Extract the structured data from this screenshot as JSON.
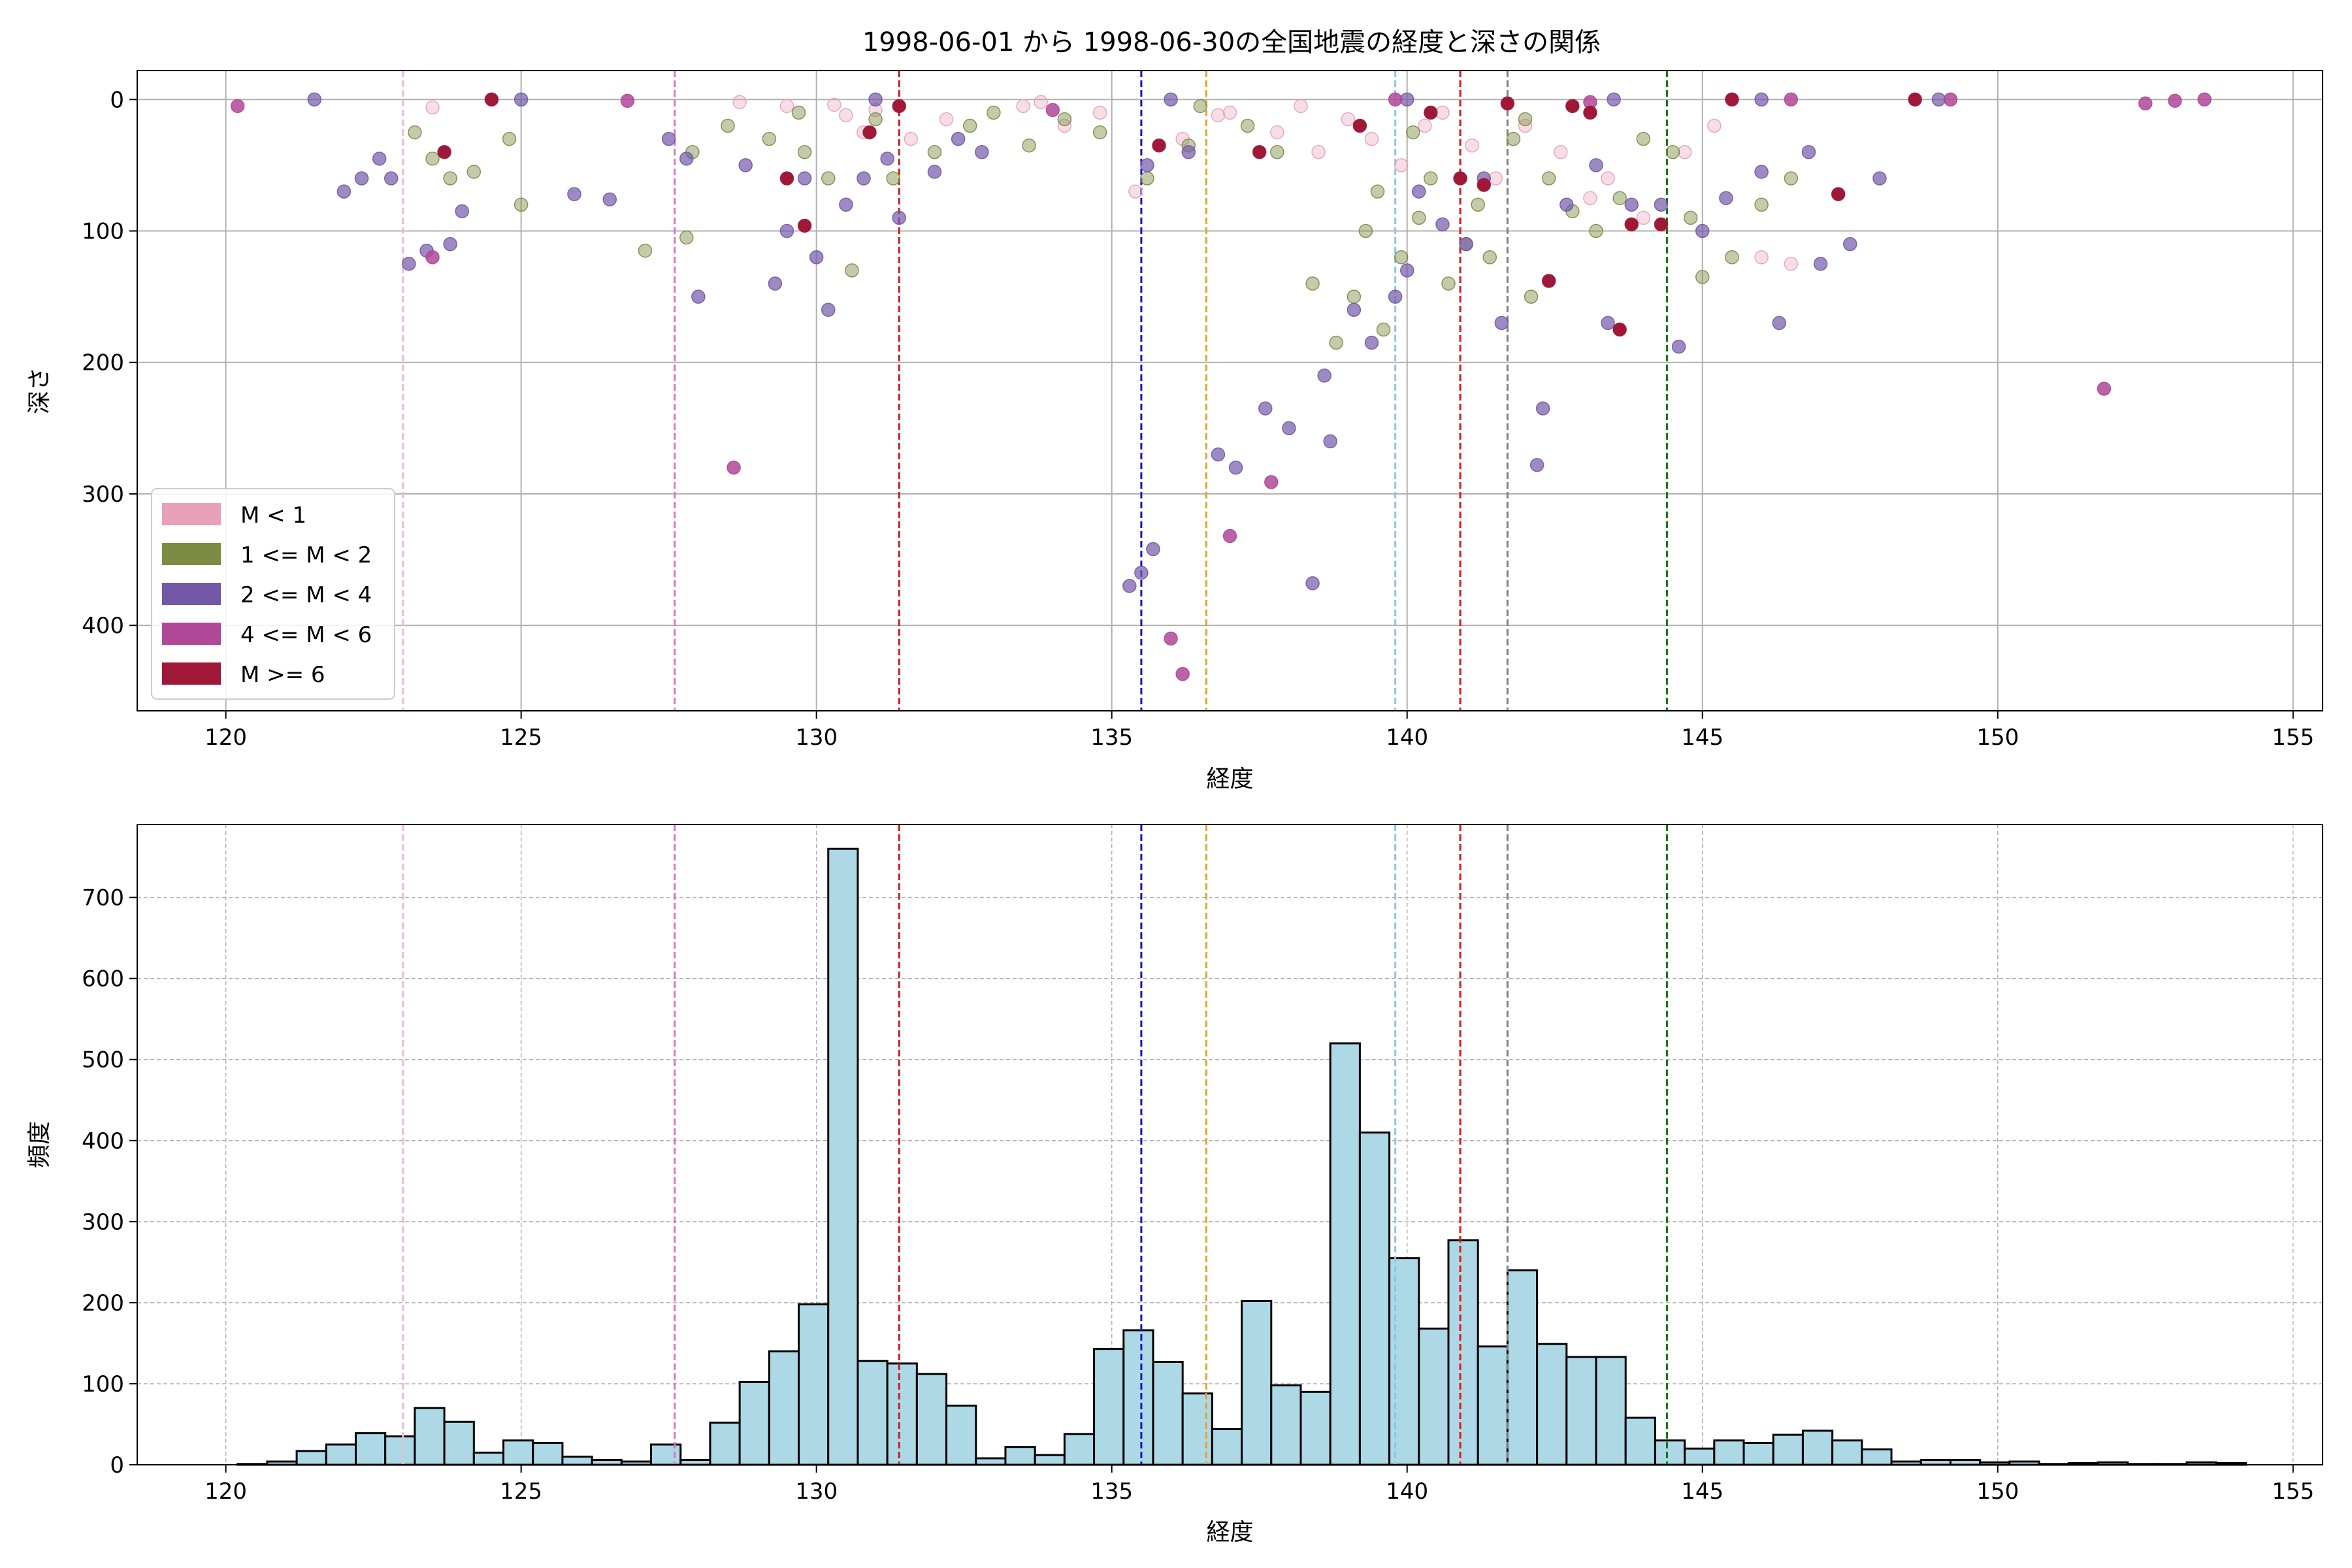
{
  "figure": {
    "title": "1998-06-01 から 1998-06-30の全国地震の経度と深さの関係"
  },
  "chart_data": [
    {
      "type": "scatter",
      "xlabel": "経度",
      "ylabel": "深さ",
      "xlim": [
        118.5,
        155.5
      ],
      "ylim": [
        465,
        -22
      ],
      "y_inverted": true,
      "xticks": [
        "120",
        "125",
        "130",
        "135",
        "140",
        "145",
        "150",
        "155"
      ],
      "yticks": [
        "0",
        "100",
        "200",
        "300",
        "400"
      ],
      "grid": true,
      "legend_position": "lower-left",
      "legend": [
        {
          "label": "M < 1",
          "color": "#e8a0b8"
        },
        {
          "label": "1 <= M < 2",
          "color": "#7c8c42"
        },
        {
          "label": "2 <= M < 4",
          "color": "#7458a8"
        },
        {
          "label": "4 <= M < 6",
          "color": "#b04898"
        },
        {
          "label": "M >= 6",
          "color": "#a01838"
        }
      ],
      "vlines": [
        {
          "x": 123.0,
          "color": "#f4b8cc"
        },
        {
          "x": 127.6,
          "color": "#e070d0"
        },
        {
          "x": 131.4,
          "color": "#c81e1e"
        },
        {
          "x": 135.5,
          "color": "#1414c8"
        },
        {
          "x": 136.6,
          "color": "#f0a020"
        },
        {
          "x": 139.8,
          "color": "#87c8e6"
        },
        {
          "x": 140.9,
          "color": "#e81414"
        },
        {
          "x": 141.7,
          "color": "#808080"
        },
        {
          "x": 144.4,
          "color": "#108010"
        }
      ],
      "series": [
        {
          "name": "M < 1",
          "points": [
            [
              128.7,
              2
            ],
            [
              129.5,
              5
            ],
            [
              130.3,
              4
            ],
            [
              130.5,
              12
            ],
            [
              130.8,
              25
            ],
            [
              131.0,
              8
            ],
            [
              131.6,
              30
            ],
            [
              132.2,
              15
            ],
            [
              133.5,
              5
            ],
            [
              134.2,
              20
            ],
            [
              134.8,
              10
            ],
            [
              135.4,
              70
            ],
            [
              136.2,
              30
            ],
            [
              137.0,
              10
            ],
            [
              137.8,
              25
            ],
            [
              138.2,
              5
            ],
            [
              138.5,
              40
            ],
            [
              139.0,
              15
            ],
            [
              139.4,
              30
            ],
            [
              139.9,
              50
            ],
            [
              140.3,
              20
            ],
            [
              140.6,
              10
            ],
            [
              141.1,
              35
            ],
            [
              141.5,
              60
            ],
            [
              142.0,
              20
            ],
            [
              142.6,
              40
            ],
            [
              143.1,
              75
            ],
            [
              143.4,
              60
            ],
            [
              144.0,
              90
            ],
            [
              144.7,
              40
            ],
            [
              145.2,
              20
            ],
            [
              146.0,
              120
            ],
            [
              146.5,
              125
            ],
            [
              136.8,
              12
            ],
            [
              133.8,
              2
            ],
            [
              123.5,
              6
            ]
          ]
        },
        {
          "name": "1 <= M < 2",
          "points": [
            [
              123.2,
              25
            ],
            [
              123.5,
              45
            ],
            [
              123.8,
              60
            ],
            [
              124.2,
              55
            ],
            [
              124.8,
              30
            ],
            [
              125.0,
              80
            ],
            [
              127.9,
              40
            ],
            [
              128.5,
              20
            ],
            [
              129.2,
              30
            ],
            [
              129.8,
              40
            ],
            [
              130.2,
              60
            ],
            [
              130.6,
              130
            ],
            [
              131.3,
              60
            ],
            [
              132.0,
              40
            ],
            [
              132.6,
              20
            ],
            [
              133.0,
              10
            ],
            [
              133.6,
              35
            ],
            [
              134.2,
              15
            ],
            [
              134.8,
              25
            ],
            [
              135.6,
              60
            ],
            [
              136.3,
              35
            ],
            [
              137.3,
              20
            ],
            [
              137.8,
              40
            ],
            [
              138.4,
              140
            ],
            [
              138.8,
              185
            ],
            [
              139.1,
              150
            ],
            [
              139.3,
              100
            ],
            [
              139.5,
              70
            ],
            [
              139.6,
              175
            ],
            [
              139.9,
              120
            ],
            [
              140.2,
              90
            ],
            [
              140.4,
              60
            ],
            [
              140.7,
              140
            ],
            [
              141.0,
              110
            ],
            [
              141.2,
              80
            ],
            [
              141.4,
              120
            ],
            [
              141.8,
              30
            ],
            [
              142.1,
              150
            ],
            [
              142.4,
              60
            ],
            [
              142.8,
              85
            ],
            [
              143.2,
              100
            ],
            [
              143.6,
              75
            ],
            [
              144.0,
              30
            ],
            [
              144.5,
              40
            ],
            [
              144.8,
              90
            ],
            [
              145.0,
              135
            ],
            [
              145.5,
              120
            ],
            [
              146.0,
              80
            ],
            [
              146.5,
              60
            ],
            [
              127.1,
              115
            ],
            [
              127.8,
              105
            ],
            [
              129.7,
              10
            ],
            [
              131.0,
              15
            ],
            [
              136.5,
              5
            ],
            [
              140.1,
              25
            ],
            [
              142.0,
              15
            ]
          ]
        },
        {
          "name": "2 <= M < 4",
          "points": [
            [
              122.0,
              70
            ],
            [
              122.3,
              60
            ],
            [
              122.6,
              45
            ],
            [
              122.8,
              60
            ],
            [
              123.1,
              125
            ],
            [
              123.4,
              115
            ],
            [
              123.8,
              110
            ],
            [
              124.0,
              85
            ],
            [
              125.9,
              72
            ],
            [
              126.5,
              76
            ],
            [
              127.5,
              30
            ],
            [
              127.8,
              45
            ],
            [
              128.0,
              150
            ],
            [
              128.8,
              50
            ],
            [
              129.3,
              140
            ],
            [
              129.5,
              100
            ],
            [
              129.8,
              60
            ],
            [
              130.0,
              120
            ],
            [
              130.2,
              160
            ],
            [
              130.5,
              80
            ],
            [
              130.8,
              60
            ],
            [
              131.2,
              45
            ],
            [
              131.4,
              90
            ],
            [
              132.0,
              55
            ],
            [
              132.4,
              30
            ],
            [
              132.8,
              40
            ],
            [
              135.3,
              370
            ],
            [
              135.5,
              360
            ],
            [
              135.6,
              50
            ],
            [
              135.7,
              342
            ],
            [
              136.3,
              40
            ],
            [
              136.8,
              270
            ],
            [
              137.1,
              280
            ],
            [
              137.6,
              235
            ],
            [
              138.0,
              250
            ],
            [
              138.6,
              210
            ],
            [
              138.7,
              260
            ],
            [
              139.1,
              160
            ],
            [
              139.4,
              185
            ],
            [
              139.8,
              150
            ],
            [
              140.0,
              130
            ],
            [
              140.2,
              70
            ],
            [
              140.6,
              95
            ],
            [
              141.0,
              110
            ],
            [
              141.3,
              60
            ],
            [
              141.6,
              170
            ],
            [
              142.2,
              278
            ],
            [
              142.3,
              235
            ],
            [
              142.7,
              80
            ],
            [
              143.2,
              50
            ],
            [
              143.4,
              170
            ],
            [
              143.8,
              80
            ],
            [
              144.3,
              80
            ],
            [
              144.6,
              188
            ],
            [
              145.0,
              100
            ],
            [
              145.4,
              75
            ],
            [
              146.0,
              55
            ],
            [
              146.3,
              170
            ],
            [
              146.8,
              40
            ],
            [
              147.0,
              125
            ],
            [
              147.5,
              110
            ],
            [
              148.0,
              60
            ],
            [
              138.4,
              368
            ],
            [
              121.5,
              0
            ],
            [
              125.0,
              0
            ],
            [
              131.0,
              0
            ],
            [
              136.0,
              0
            ],
            [
              140.0,
              0
            ],
            [
              143.5,
              0
            ],
            [
              146.0,
              0
            ],
            [
              149.0,
              0
            ]
          ]
        },
        {
          "name": "4 <= M < 6",
          "points": [
            [
              120.2,
              5
            ],
            [
              123.5,
              120
            ],
            [
              128.6,
              280
            ],
            [
              136.0,
              410
            ],
            [
              136.2,
              437
            ],
            [
              137.0,
              332
            ],
            [
              137.7,
              291
            ],
            [
              151.8,
              220
            ],
            [
              152.5,
              3
            ],
            [
              153.0,
              1
            ],
            [
              153.5,
              0
            ],
            [
              149.2,
              0
            ],
            [
              146.5,
              0
            ],
            [
              143.1,
              2
            ],
            [
              139.8,
              0
            ],
            [
              134.0,
              8
            ],
            [
              126.8,
              1
            ]
          ]
        },
        {
          "name": "M >= 6",
          "points": [
            [
              123.7,
              40
            ],
            [
              129.8,
              96
            ],
            [
              129.5,
              60
            ],
            [
              131.4,
              5
            ],
            [
              135.8,
              35
            ],
            [
              137.5,
              40
            ],
            [
              140.9,
              60
            ],
            [
              141.3,
              65
            ],
            [
              142.4,
              138
            ],
            [
              143.6,
              175
            ],
            [
              143.8,
              95
            ],
            [
              144.3,
              95
            ],
            [
              147.3,
              72
            ],
            [
              142.8,
              5
            ],
            [
              141.7,
              3
            ],
            [
              143.1,
              10
            ],
            [
              124.5,
              0
            ],
            [
              130.9,
              25
            ],
            [
              139.2,
              20
            ],
            [
              140.4,
              10
            ],
            [
              145.5,
              0
            ],
            [
              148.6,
              0
            ]
          ]
        }
      ]
    },
    {
      "type": "bar",
      "xlabel": "経度",
      "ylabel": "頻度",
      "xlim": [
        118.5,
        155.5
      ],
      "ylim": [
        0,
        790
      ],
      "xticks": [
        "120",
        "125",
        "130",
        "135",
        "140",
        "145",
        "150",
        "155"
      ],
      "yticks": [
        "0",
        "100",
        "200",
        "300",
        "400",
        "500",
        "600",
        "700"
      ],
      "grid": true,
      "bar_color": "#add8e6",
      "bin_start": 120.2,
      "bin_width": 0.5,
      "values": [
        1,
        4,
        17,
        25,
        39,
        35,
        70,
        53,
        15,
        30,
        27,
        10,
        6,
        4,
        25,
        6,
        52,
        102,
        140,
        198,
        760,
        128,
        125,
        112,
        73,
        8,
        22,
        12,
        38,
        143,
        166,
        127,
        88,
        44,
        202,
        98,
        90,
        520,
        410,
        255,
        168,
        277,
        146,
        240,
        149,
        133,
        133,
        58,
        30,
        20,
        30,
        27,
        37,
        42,
        30,
        19,
        4,
        6,
        6,
        3,
        4,
        1,
        2,
        3,
        1,
        1,
        3,
        2
      ]
    }
  ]
}
